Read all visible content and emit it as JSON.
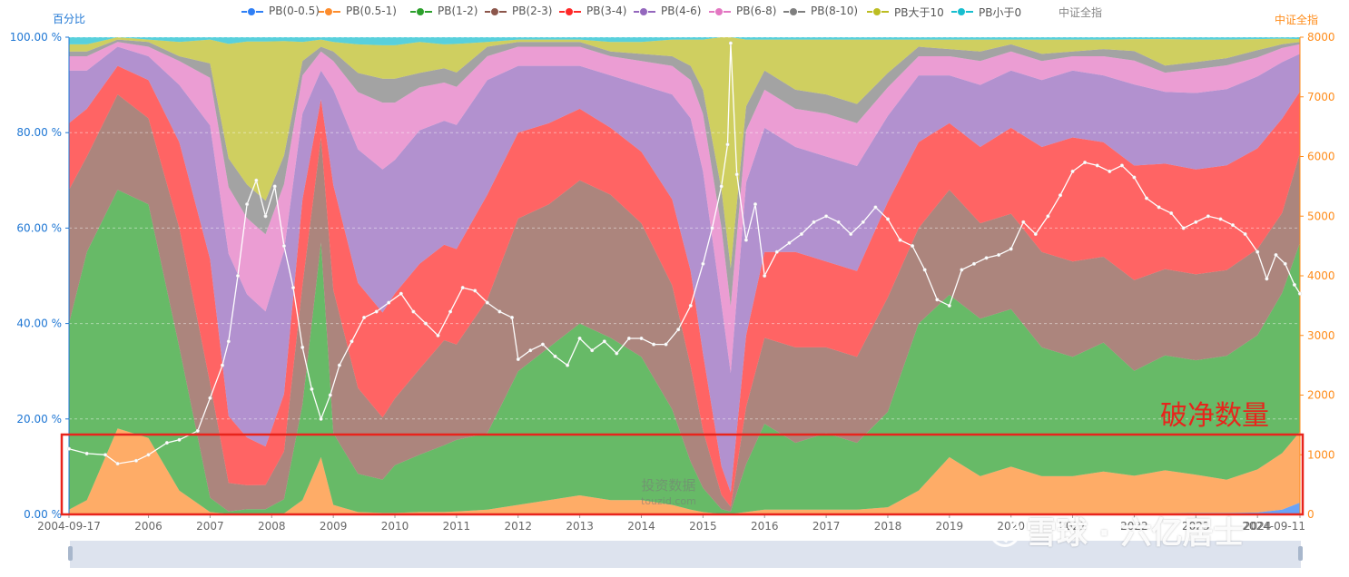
{
  "chart_data": {
    "type": "area",
    "stacked_percent": true,
    "left_axis": {
      "name": "百分比",
      "ticks": [
        "0.00 %",
        "20.00 %",
        "40.00 %",
        "60.00 %",
        "80.00 %",
        "100.00 %"
      ],
      "range": [
        0,
        100
      ]
    },
    "right_axis": {
      "name": "中证全指",
      "ticks": [
        "0",
        "1000",
        "2000",
        "3000",
        "4000",
        "5000",
        "6000",
        "7000",
        "8000"
      ],
      "range": [
        0,
        8000
      ]
    },
    "x_tick_labels": [
      "2004-09-17",
      "2006",
      "2007",
      "2008",
      "2009",
      "2010",
      "2011",
      "2012",
      "2013",
      "2014",
      "2015",
      "2016",
      "2017",
      "2018",
      "2019",
      "2020",
      "2021",
      "2022",
      "2023",
      "2024",
      "2024-09-11"
    ],
    "x": [
      2004.71,
      2005.0,
      2005.5,
      2006.0,
      2006.5,
      2007.0,
      2007.3,
      2007.6,
      2007.9,
      2008.2,
      2008.5,
      2008.8,
      2009.0,
      2009.4,
      2009.8,
      2010.0,
      2010.4,
      2010.8,
      2011.0,
      2011.5,
      2012.0,
      2012.5,
      2013.0,
      2013.5,
      2014.0,
      2014.5,
      2014.8,
      2015.0,
      2015.3,
      2015.45,
      2015.7,
      2016.0,
      2016.5,
      2017.0,
      2017.5,
      2018.0,
      2018.5,
      2019.0,
      2019.5,
      2020.0,
      2020.5,
      2021.0,
      2021.5,
      2022.0,
      2022.5,
      2023.0,
      2023.5,
      2024.0,
      2024.4,
      2024.69
    ],
    "series": [
      {
        "name": "PB(0-0.5)",
        "color": "#2f7ff5",
        "values": [
          0,
          0,
          0,
          0,
          0,
          0,
          0,
          0,
          0,
          0,
          0,
          0,
          0,
          0,
          0,
          0,
          0,
          0,
          0,
          0,
          0,
          0,
          0,
          0,
          0,
          0,
          0,
          0,
          0,
          0,
          0,
          0,
          0,
          0,
          0,
          0,
          0,
          0,
          0,
          0,
          0,
          0,
          0,
          0.1,
          0.2,
          0.3,
          0.3,
          0.4,
          1.0,
          2.5
        ]
      },
      {
        "name": "PB(0.5-1)",
        "color": "#fd8c2c",
        "values": [
          1,
          3,
          18,
          16,
          5,
          0.5,
          0.1,
          0.1,
          0.1,
          0.2,
          3,
          12,
          2,
          0.5,
          0.3,
          0.3,
          0.5,
          0.5,
          0.6,
          1,
          2,
          3,
          4,
          3,
          3,
          2,
          1,
          0.5,
          0.1,
          0.1,
          0.5,
          1,
          1,
          1,
          1,
          1.5,
          5,
          12,
          8,
          10,
          8,
          8,
          9,
          8,
          9,
          8,
          7,
          9,
          12,
          15
        ]
      },
      {
        "name": "PB(1-2)",
        "color": "#2ca02c",
        "values": [
          39,
          52,
          50,
          49,
          30,
          3,
          0.5,
          1,
          1,
          3,
          20,
          45,
          15,
          8,
          7,
          10,
          12,
          14,
          15,
          16,
          28,
          32,
          36,
          34,
          30,
          20,
          10,
          5,
          1,
          0.5,
          10,
          18,
          14,
          16,
          14,
          20,
          35,
          34,
          33,
          33,
          27,
          25,
          27,
          22,
          24,
          24,
          26,
          28,
          34,
          40
        ]
      },
      {
        "name": "PB(2-3)",
        "color": "#8c564b",
        "values": [
          28,
          20,
          20,
          18,
          25,
          24,
          6,
          5,
          5,
          10,
          25,
          22,
          30,
          18,
          13,
          14,
          18,
          22,
          20,
          28,
          32,
          30,
          30,
          30,
          28,
          26,
          20,
          12,
          3,
          1,
          12,
          18,
          20,
          18,
          18,
          24,
          20,
          22,
          20,
          20,
          20,
          20,
          18,
          19,
          18,
          18,
          18,
          18,
          17,
          19
        ]
      },
      {
        "name": "PB(3-4)",
        "color": "#ff2828",
        "values": [
          14,
          10,
          6,
          8,
          18,
          26,
          14,
          10,
          8,
          12,
          18,
          8,
          22,
          22,
          22,
          22,
          22,
          20,
          20,
          22,
          18,
          17,
          15,
          14,
          15,
          18,
          20,
          16,
          6,
          3,
          15,
          18,
          20,
          18,
          18,
          20,
          18,
          14,
          16,
          18,
          22,
          26,
          24,
          24,
          22,
          22,
          22,
          21,
          20,
          13
        ]
      },
      {
        "name": "PB(4-6)",
        "color": "#9467bd",
        "values": [
          11,
          8,
          4,
          5,
          12,
          28,
          34,
          30,
          28,
          30,
          18,
          6,
          20,
          28,
          30,
          28,
          28,
          26,
          26,
          24,
          14,
          12,
          9,
          11,
          14,
          22,
          32,
          38,
          34,
          25,
          32,
          26,
          22,
          22,
          22,
          18,
          14,
          10,
          13,
          12,
          14,
          14,
          14,
          17,
          15,
          16,
          16,
          15,
          12,
          8
        ]
      },
      {
        "name": "PB(6-8)",
        "color": "#e377c2",
        "values": [
          3,
          3,
          1,
          2,
          5,
          10,
          14,
          16,
          16,
          14,
          8,
          4,
          6,
          12,
          14,
          12,
          9,
          8,
          8,
          5,
          4,
          4,
          4,
          4,
          5,
          6,
          8,
          12,
          16,
          14,
          11,
          8,
          8,
          9,
          9,
          6,
          4,
          4,
          5,
          4,
          4,
          3,
          4,
          5,
          4,
          5,
          5,
          4,
          3,
          2
        ]
      },
      {
        "name": "PB(8-10)",
        "color": "#7f7f7f",
        "values": [
          1,
          1,
          0.5,
          1,
          1,
          3,
          6,
          7,
          7,
          6,
          3,
          1,
          2,
          4,
          5,
          5,
          3,
          3,
          3,
          2,
          1,
          1,
          1,
          1,
          1.5,
          2,
          3,
          5,
          8,
          8,
          5,
          4,
          4,
          4,
          4,
          3,
          2,
          1.5,
          2,
          1.5,
          1.5,
          1,
          1.5,
          2,
          1.5,
          1.5,
          1.5,
          1.5,
          0.8,
          0.5
        ]
      },
      {
        "name": "PB大于10",
        "color": "#bcbd22",
        "values": [
          1.5,
          1.5,
          0.5,
          0.5,
          3,
          5,
          24,
          30,
          33,
          24,
          4,
          1.5,
          2,
          6,
          7,
          7,
          6.5,
          5,
          6,
          1,
          0.5,
          0.5,
          0.5,
          2,
          2.5,
          3.5,
          5.5,
          10.5,
          31.9,
          48.4,
          14,
          6.5,
          10.5,
          11.5,
          13.5,
          7,
          1.5,
          2,
          2.5,
          1,
          3,
          2.5,
          2,
          2.5,
          5.5,
          4.7,
          3.9,
          2.3,
          1.2,
          0.6
        ]
      },
      {
        "name": "PB小于0",
        "color": "#17becf",
        "values": [
          1.5,
          1.5,
          0,
          0.5,
          1,
          0.5,
          1.4,
          0.9,
          0.9,
          0.8,
          1,
          0.5,
          1,
          1.5,
          1.7,
          1.7,
          1,
          1.5,
          1.4,
          1,
          0.5,
          0.5,
          0.5,
          1,
          1,
          0.5,
          0.5,
          0.5,
          0,
          0,
          0.5,
          0.5,
          0.5,
          0.5,
          0.5,
          0.5,
          0.5,
          0.5,
          0.5,
          0.5,
          0.5,
          0.5,
          0.5,
          0.4,
          0.4,
          0.5,
          0.5,
          0.4,
          0.3,
          0.4
        ]
      }
    ],
    "line": {
      "name": "中证全指",
      "color": "#ffffff",
      "x": [
        2004.71,
        2005.0,
        2005.3,
        2005.5,
        2005.8,
        2006.0,
        2006.3,
        2006.5,
        2006.8,
        2007.0,
        2007.2,
        2007.3,
        2007.45,
        2007.6,
        2007.75,
        2007.9,
        2008.05,
        2008.2,
        2008.35,
        2008.5,
        2008.65,
        2008.8,
        2008.95,
        2009.1,
        2009.3,
        2009.5,
        2009.7,
        2009.9,
        2010.1,
        2010.3,
        2010.5,
        2010.7,
        2010.9,
        2011.1,
        2011.3,
        2011.5,
        2011.7,
        2011.9,
        2012.0,
        2012.2,
        2012.4,
        2012.6,
        2012.8,
        2013.0,
        2013.2,
        2013.4,
        2013.6,
        2013.8,
        2014.0,
        2014.2,
        2014.4,
        2014.6,
        2014.8,
        2015.0,
        2015.15,
        2015.3,
        2015.4,
        2015.45,
        2015.55,
        2015.7,
        2015.85,
        2016.0,
        2016.2,
        2016.4,
        2016.6,
        2016.8,
        2017.0,
        2017.2,
        2017.4,
        2017.6,
        2017.8,
        2018.0,
        2018.2,
        2018.4,
        2018.6,
        2018.8,
        2019.0,
        2019.2,
        2019.4,
        2019.6,
        2019.8,
        2020.0,
        2020.2,
        2020.4,
        2020.6,
        2020.8,
        2021.0,
        2021.2,
        2021.4,
        2021.6,
        2021.8,
        2022.0,
        2022.2,
        2022.4,
        2022.6,
        2022.8,
        2023.0,
        2023.2,
        2023.4,
        2023.6,
        2023.8,
        2024.0,
        2024.15,
        2024.3,
        2024.45,
        2024.6,
        2024.69
      ],
      "values": [
        1100,
        1020,
        1000,
        850,
        900,
        1000,
        1200,
        1250,
        1400,
        1950,
        2500,
        2900,
        4000,
        5200,
        5600,
        5000,
        5500,
        4500,
        3800,
        2800,
        2100,
        1600,
        2000,
        2500,
        2900,
        3300,
        3400,
        3550,
        3700,
        3400,
        3200,
        3000,
        3400,
        3800,
        3750,
        3550,
        3400,
        3300,
        2600,
        2750,
        2850,
        2650,
        2500,
        2950,
        2750,
        2900,
        2700,
        2950,
        2950,
        2850,
        2850,
        3100,
        3500,
        4200,
        4800,
        5500,
        6200,
        7900,
        5700,
        4600,
        5200,
        4000,
        4400,
        4550,
        4700,
        4900,
        5000,
        4900,
        4700,
        4900,
        5150,
        4950,
        4600,
        4500,
        4100,
        3600,
        3500,
        4100,
        4200,
        4300,
        4350,
        4450,
        4900,
        4700,
        5000,
        5350,
        5750,
        5900,
        5850,
        5750,
        5850,
        5650,
        5300,
        5150,
        5050,
        4800,
        4900,
        5000,
        4950,
        4850,
        4700,
        4400,
        3950,
        4350,
        4200,
        3850,
        3700
      ]
    },
    "legend_position": "top-center",
    "grid": true
  },
  "legend": [
    {
      "label": "PB(0-0.5)",
      "color": "#2f7ff5"
    },
    {
      "label": "PB(0.5-1)",
      "color": "#fd8c2c"
    },
    {
      "label": "PB(1-2)",
      "color": "#2ca02c"
    },
    {
      "label": "PB(2-3)",
      "color": "#8c564b"
    },
    {
      "label": "PB(3-4)",
      "color": "#ff2828"
    },
    {
      "label": "PB(4-6)",
      "color": "#9467bd"
    },
    {
      "label": "PB(6-8)",
      "color": "#e377c2"
    },
    {
      "label": "PB(8-10)",
      "color": "#7f7f7f"
    },
    {
      "label": "PB大于10",
      "color": "#bcbd22"
    },
    {
      "label": "PB小于0",
      "color": "#17becf"
    },
    {
      "label": "中证全指",
      "color": "#cccccc"
    }
  ],
  "annotation": {
    "text": "破净数量",
    "color": "#e8241c"
  },
  "watermarks": {
    "center_line1": "投资数据",
    "center_line2": "touzid.com",
    "brand": "雪球 · 六亿居士"
  },
  "colors": {
    "left_axis": "#1f77d4",
    "right_axis": "#ff8c1a",
    "x_axis_text": "#666666",
    "highlight_box": "#e8241c"
  }
}
